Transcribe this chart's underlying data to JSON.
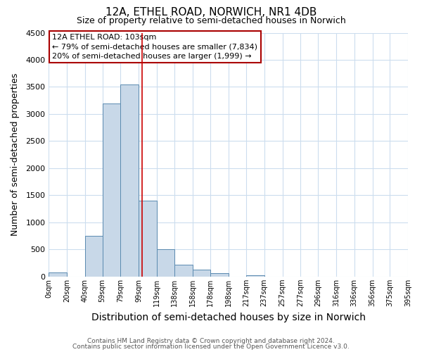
{
  "title": "12A, ETHEL ROAD, NORWICH, NR1 4DB",
  "subtitle": "Size of property relative to semi-detached houses in Norwich",
  "xlabel": "Distribution of semi-detached houses by size in Norwich",
  "ylabel": "Number of semi-detached properties",
  "footer_line1": "Contains HM Land Registry data © Crown copyright and database right 2024.",
  "footer_line2": "Contains public sector information licensed under the Open Government Licence v3.0.",
  "bar_edges": [
    0,
    20,
    40,
    59,
    79,
    99,
    119,
    138,
    158,
    178,
    198,
    217,
    237,
    257,
    277,
    296,
    316,
    336,
    356,
    375,
    395
  ],
  "bar_heights": [
    75,
    0,
    750,
    3200,
    3550,
    1400,
    500,
    225,
    130,
    60,
    0,
    30,
    0,
    0,
    0,
    0,
    0,
    0,
    0,
    0
  ],
  "bar_color": "#c8d8e8",
  "bar_edgecolor": "#5a8ab0",
  "property_line_x": 103,
  "property_line_color": "#cc0000",
  "annotation_title": "12A ETHEL ROAD: 103sqm",
  "annotation_line1": "← 79% of semi-detached houses are smaller (7,834)",
  "annotation_line2": "20% of semi-detached houses are larger (1,999) →",
  "annotation_box_color": "#ffffff",
  "annotation_border_color": "#aa0000",
  "ylim": [
    0,
    4500
  ],
  "xlim": [
    0,
    395
  ],
  "yticks": [
    0,
    500,
    1000,
    1500,
    2000,
    2500,
    3000,
    3500,
    4000,
    4500
  ],
  "tick_labels": [
    "0sqm",
    "20sqm",
    "40sqm",
    "59sqm",
    "79sqm",
    "99sqm",
    "119sqm",
    "138sqm",
    "158sqm",
    "178sqm",
    "198sqm",
    "217sqm",
    "237sqm",
    "257sqm",
    "277sqm",
    "296sqm",
    "316sqm",
    "336sqm",
    "356sqm",
    "375sqm",
    "395sqm"
  ],
  "background_color": "#ffffff",
  "grid_color": "#ccddee",
  "title_fontsize": 11,
  "subtitle_fontsize": 9,
  "ylabel_fontsize": 9,
  "xlabel_fontsize": 10,
  "footer_fontsize": 6.5
}
